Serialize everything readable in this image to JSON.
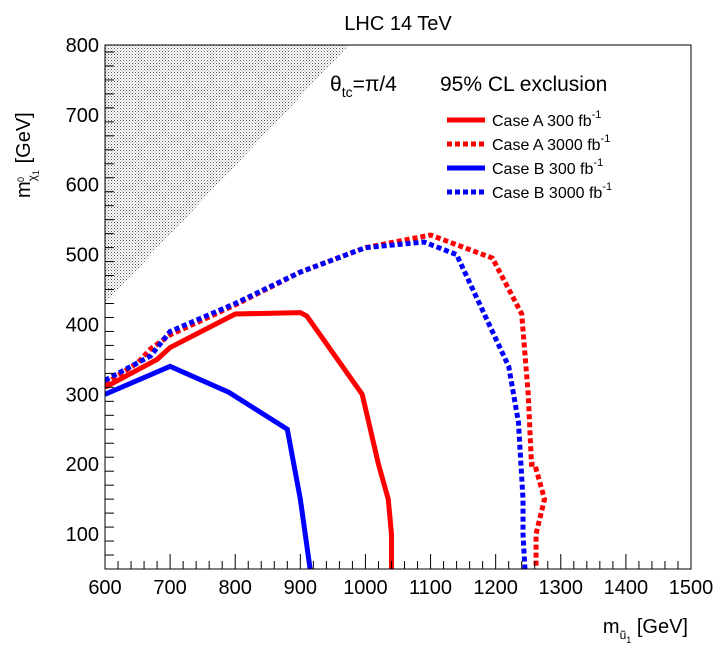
{
  "chart_data": {
    "type": "line",
    "title": "LHC 14 TeV",
    "xlabel": {
      "base": "m",
      "sub": "ũ",
      "subsub": "1",
      "unit": "[GeV]"
    },
    "ylabel": {
      "base": "m",
      "sub": "χ",
      "sup": "0",
      "subsub": "1",
      "unit": "[GeV]"
    },
    "xlim": [
      600,
      1500
    ],
    "ylim": [
      50,
      800
    ],
    "xticks": [
      600,
      700,
      800,
      900,
      1000,
      1100,
      1200,
      1300,
      1400,
      1500
    ],
    "yticks": [
      100,
      200,
      300,
      400,
      500,
      600,
      700,
      800
    ],
    "grid": false,
    "annotations": {
      "theta": {
        "base": "θ",
        "sub": "tc",
        "rest": "=π/4"
      },
      "exclusion": "95% CL exclusion"
    },
    "forbidden_region": {
      "description": "hatched",
      "points": [
        [
          600,
          430
        ],
        [
          600,
          800
        ],
        [
          975,
          800
        ]
      ]
    },
    "legend": {
      "placement": "top-right"
    },
    "series": [
      {
        "name": "Case A 300 fb",
        "name_sup": "-1",
        "color": "#ff0000",
        "style": "solid",
        "x": [
          600,
          680,
          700,
          800,
          900,
          910,
          995,
          1020,
          1035,
          1040,
          1040
        ],
        "y": [
          310,
          350,
          367,
          415,
          417,
          412,
          300,
          200,
          150,
          100,
          50
        ]
      },
      {
        "name": "Case A 3000 fb",
        "name_sup": "-1",
        "color": "#ff0000",
        "style": "dotted",
        "x": [
          600,
          650,
          670,
          700,
          800,
          900,
          1000,
          1100,
          1195,
          1240,
          1250,
          1255,
          1260,
          1275,
          1262,
          1262
        ],
        "y": [
          315,
          345,
          365,
          385,
          428,
          475,
          510,
          528,
          495,
          415,
          300,
          200,
          200,
          150,
          100,
          50
        ]
      },
      {
        "name": "Case B 300 fb",
        "name_sup": "-1",
        "color": "#0000ff",
        "style": "solid",
        "x": [
          600,
          700,
          790,
          880,
          900,
          915
        ],
        "y": [
          300,
          340,
          303,
          250,
          150,
          50
        ]
      },
      {
        "name": "Case B 3000 fb",
        "name_sup": "-1",
        "color": "#0000ff",
        "style": "dotted",
        "x": [
          600,
          650,
          670,
          700,
          800,
          900,
          1000,
          1090,
          1140,
          1180,
          1220,
          1235,
          1242,
          1242,
          1245
        ],
        "y": [
          320,
          345,
          355,
          390,
          430,
          475,
          510,
          518,
          500,
          420,
          340,
          260,
          150,
          100,
          50
        ]
      }
    ]
  }
}
